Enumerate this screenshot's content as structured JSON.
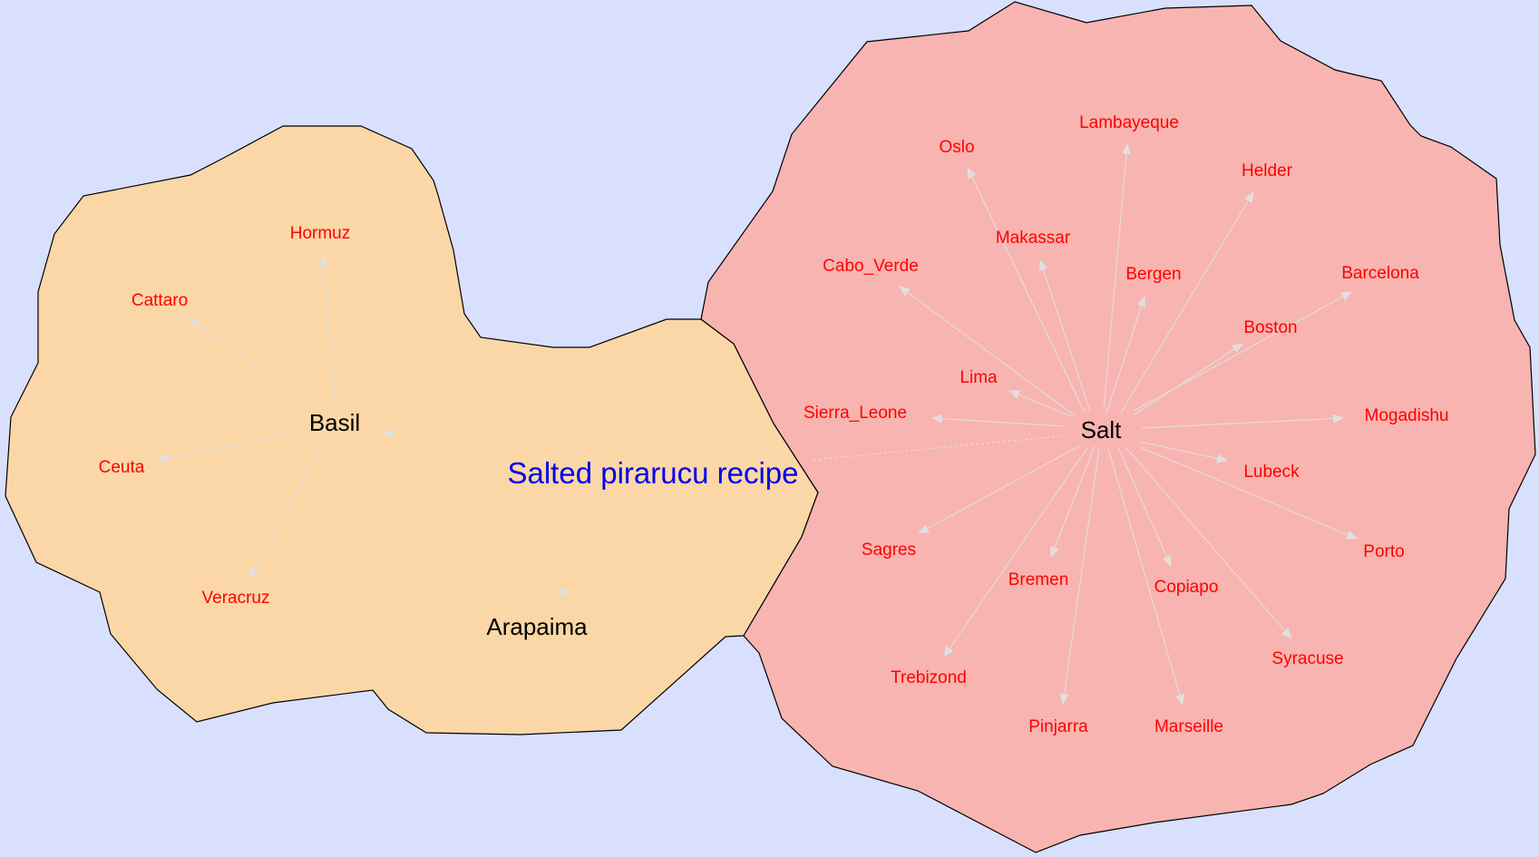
{
  "colors": {
    "background": "#d8e0fe",
    "region_basil": "#fbd7a7",
    "region_salt": "#f8b4b0",
    "region_border": "#000000",
    "hub_text": "#000000",
    "leaf_text": "#ff0000",
    "title_text": "#0000ee",
    "edge": "#e0e0e0"
  },
  "title": "Salted pirarucu recipe",
  "hubs": {
    "basil": "Basil",
    "arapaima": "Arapaima",
    "salt": "Salt"
  },
  "basil_leaves": [
    "Hormuz",
    "Cattaro",
    "Ceuta",
    "Veracruz"
  ],
  "salt_leaves": [
    "Lambayeque",
    "Oslo",
    "Helder",
    "Makassar",
    "Cabo_Verde",
    "Bergen",
    "Barcelona",
    "Boston",
    "Lima",
    "Sierra_Leone",
    "Mogadishu",
    "Lubeck",
    "Porto",
    "Sagres",
    "Bremen",
    "Copiapo",
    "Syracuse",
    "Trebizond",
    "Pinjarra",
    "Marseille"
  ]
}
